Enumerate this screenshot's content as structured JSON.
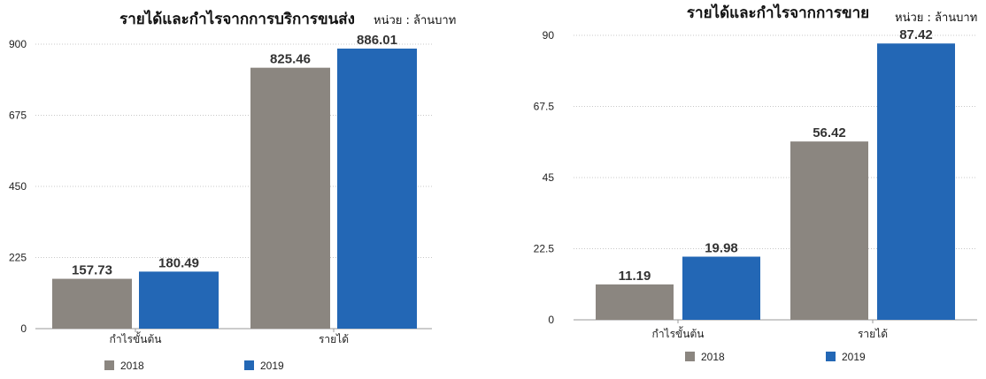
{
  "chart_data": [
    {
      "type": "bar",
      "title": "รายได้และกำไรจากการบริการขนส่ง",
      "unit_label": "หน่วย : ล้านบาท",
      "categories": [
        "กำไรขั้นต้น",
        "รายได้"
      ],
      "series": [
        {
          "name": "2018",
          "values": [
            157.73,
            825.46
          ],
          "color": "#8b8680"
        },
        {
          "name": "2019",
          "values": [
            180.49,
            886.01
          ],
          "color": "#2367b5"
        }
      ],
      "yticks": [
        "0",
        "225",
        "450",
        "675",
        "900"
      ],
      "ylim": [
        0,
        900
      ],
      "grid": true,
      "legend_position": "bottom"
    },
    {
      "type": "bar",
      "title": "รายได้และกำไรจากการขาย",
      "unit_label": "หน่วย : ล้านบาท",
      "categories": [
        "กำไรขั้นต้น",
        "รายได้"
      ],
      "series": [
        {
          "name": "2018",
          "values": [
            11.19,
            56.42
          ],
          "color": "#8b8680"
        },
        {
          "name": "2019",
          "values": [
            19.98,
            87.42
          ],
          "color": "#2367b5"
        }
      ],
      "yticks": [
        "0",
        "22.5",
        "45",
        "67.5",
        "90"
      ],
      "ylim": [
        0,
        90
      ],
      "grid": true,
      "legend_position": "bottom"
    }
  ]
}
